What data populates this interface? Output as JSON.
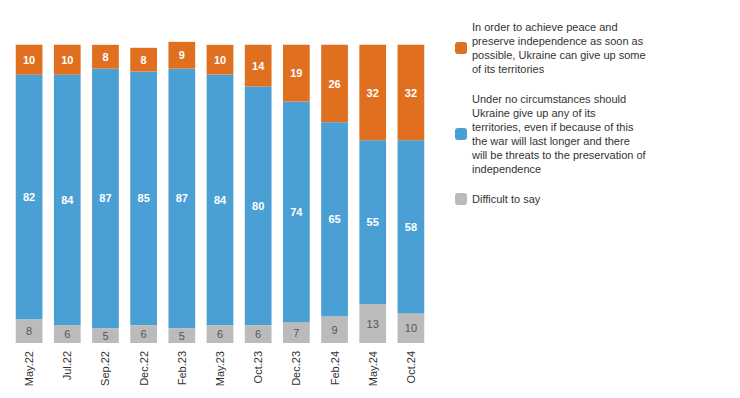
{
  "chart_data": {
    "type": "bar",
    "stacked": true,
    "data_labels": true,
    "grid": false,
    "legend": "right",
    "tick_labels": "x",
    "categories": [
      "May.22",
      "Jul.22",
      "Sep.22",
      "Dec.22",
      "Feb.23",
      "May.23",
      "Oct.23",
      "Dec.23",
      "Feb.24",
      "May.24",
      "Oct.24"
    ],
    "ylim": [
      0,
      110
    ],
    "series": [
      {
        "name": "Difficult to say",
        "color": "#BBBBBB",
        "values": [
          8,
          6,
          5,
          6,
          5,
          6,
          6,
          7,
          9,
          13,
          10
        ]
      },
      {
        "name": "Under no circumstances should\nUkraine give up any of its\nterritories, even if because of this\nthe war will last longer and there\nwill be threats to the preservation of\nindependence",
        "color": "#4A9FD4",
        "values": [
          82,
          84,
          87,
          85,
          87,
          84,
          80,
          74,
          65,
          55,
          58
        ]
      },
      {
        "name": "In order to achieve peace and\npreserve independence as soon as\npossible, Ukraine can give up some\nof its territories",
        "color": "#E07020",
        "values": [
          10,
          10,
          8,
          8,
          9,
          10,
          14,
          19,
          26,
          32,
          32
        ]
      }
    ]
  }
}
